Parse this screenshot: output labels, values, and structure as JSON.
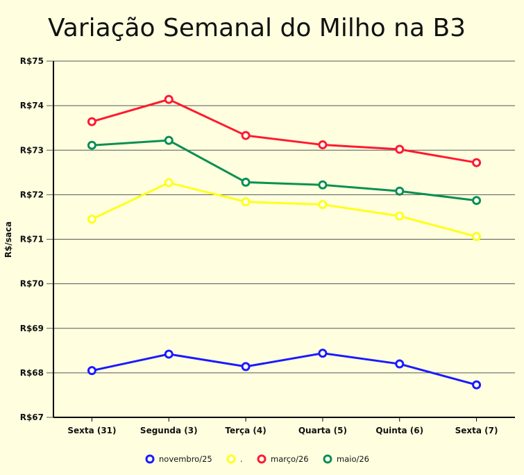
{
  "chart_data": {
    "type": "line",
    "title": "Variação Semanal do Milho na B3",
    "xlabel": "",
    "ylabel": "R$/saca",
    "categories": [
      "Sexta (31)",
      "Segunda (3)",
      "Terça (4)",
      "Quarta (5)",
      "Quinta (6)",
      "Sexta (7)"
    ],
    "ylim": [
      67,
      75
    ],
    "yticks": [
      67,
      68,
      69,
      70,
      71,
      72,
      73,
      74,
      75
    ],
    "ytick_labels": [
      "R$67",
      "R$68",
      "R$69",
      "R$70",
      "R$71",
      "R$72",
      "R$73",
      "R$74",
      "R$75"
    ],
    "grid": "horizontal",
    "legend_position": "bottom",
    "series": [
      {
        "name": "novembro/25",
        "color": "#1a1aff",
        "values": [
          68.05,
          68.42,
          68.14,
          68.44,
          68.2,
          67.73
        ]
      },
      {
        "name": ".",
        "color": "#ffff1a",
        "values": [
          71.45,
          72.27,
          71.84,
          71.78,
          71.52,
          71.06
        ]
      },
      {
        "name": "março/26",
        "color": "#ff1a2e",
        "values": [
          73.64,
          74.14,
          73.33,
          73.12,
          73.02,
          72.72
        ]
      },
      {
        "name": "maio/26",
        "color": "#0a9050",
        "values": [
          73.11,
          73.22,
          72.28,
          72.22,
          72.08,
          71.87
        ]
      }
    ]
  }
}
